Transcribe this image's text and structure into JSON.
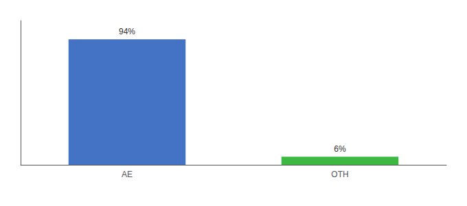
{
  "chart_data": {
    "type": "bar",
    "categories": [
      "AE",
      "OTH"
    ],
    "values": [
      94,
      6
    ],
    "value_labels": [
      "94%",
      "6%"
    ],
    "colors": [
      "#4472c4",
      "#3cb843"
    ],
    "ylim": [
      0,
      108
    ],
    "grid": false,
    "data_labels": true,
    "tick_labels": "x"
  }
}
